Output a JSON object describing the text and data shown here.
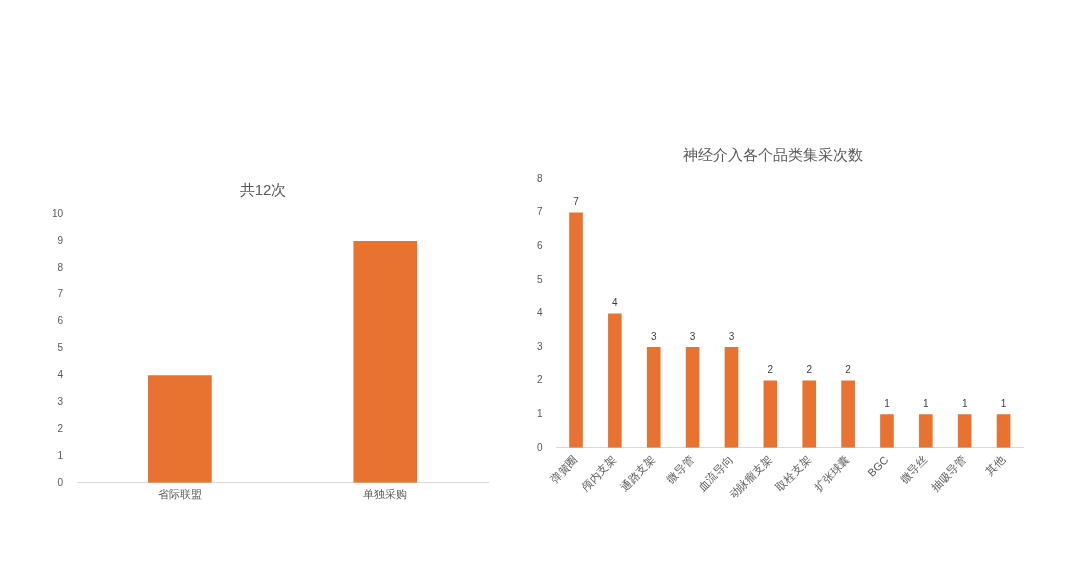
{
  "chart_data": [
    {
      "type": "bar",
      "title": "共12次",
      "categories": [
        "省际联盟",
        "单独采购"
      ],
      "values": [
        4,
        9
      ],
      "color": "#e8722f",
      "ylim": [
        0,
        10
      ],
      "yticks": [
        0,
        1,
        2,
        3,
        4,
        5,
        6,
        7,
        8,
        9,
        10
      ]
    },
    {
      "type": "bar",
      "title": "神经介入各个品类集采次数",
      "categories": [
        "弹簧圈",
        "颅内支架",
        "通路支架",
        "微导管",
        "血流导向",
        "动脉瘤支架",
        "取栓支架",
        "扩张球囊",
        "BGC",
        "微导丝",
        "抽吸导管",
        "其他"
      ],
      "values": [
        7,
        4,
        3,
        3,
        3,
        2,
        2,
        2,
        1,
        1,
        1,
        1
      ],
      "color": "#e8722f",
      "ylim": [
        0,
        8
      ],
      "yticks": [
        0,
        1,
        2,
        3,
        4,
        5,
        6,
        7,
        8
      ],
      "data_labels": true
    }
  ]
}
